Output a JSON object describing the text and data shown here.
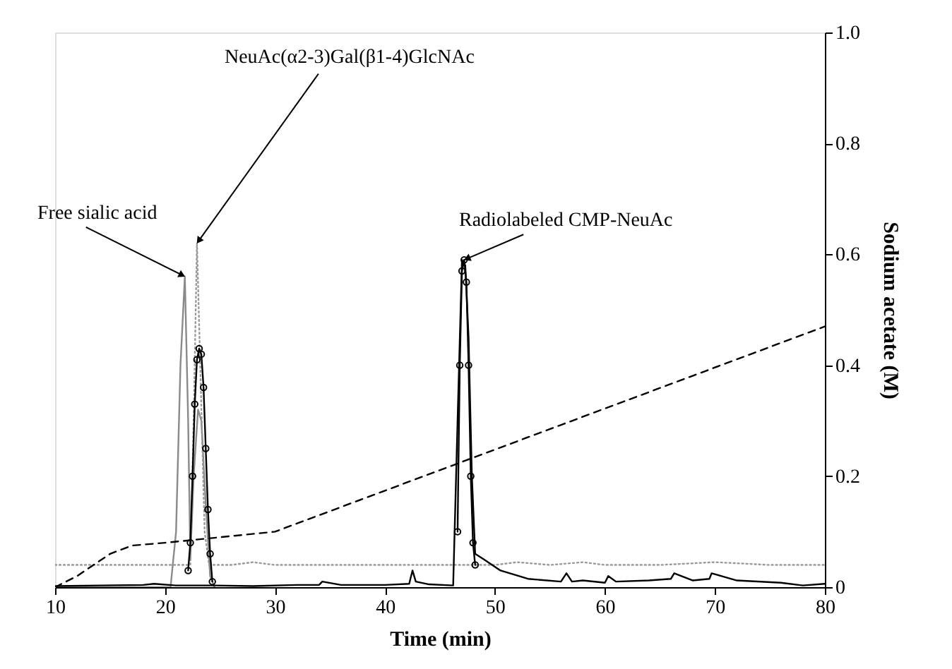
{
  "chart_data": {
    "type": "line",
    "xlabel": "Time (min)",
    "ylabel": "Sodium acetate (M)",
    "xlim": [
      10,
      80
    ],
    "xticks": [
      10,
      20,
      30,
      40,
      50,
      60,
      70,
      80
    ],
    "ylim": [
      0,
      1
    ],
    "yticks": [
      0,
      0.2,
      0.4,
      0.6,
      0.8,
      {
        "value": 1,
        "label": "1.0"
      }
    ],
    "grid": false,
    "annotations": [
      {
        "text": "Free sialic acid",
        "x": 21.8,
        "y": 0.56
      },
      {
        "text": "NeuAc(α2-3)Gal(β1-4)GlcNAc",
        "x": 22.9,
        "y": 0.62
      },
      {
        "text": "Radiolabeled CMP-NeuAc",
        "x": 47.2,
        "y": 0.59
      }
    ],
    "series": [
      {
        "color": "#8a8a8a",
        "line_style": "solid",
        "marker": "none",
        "x": [
          10,
          20.5,
          21.0,
          21.4,
          21.8,
          22.1,
          22.3,
          22.6,
          23.0,
          23.3,
          23.7,
          24.1,
          24.5
        ],
        "values": [
          0,
          0,
          0.1,
          0.4,
          0.56,
          0.3,
          0.05,
          0.2,
          0.32,
          0.3,
          0.15,
          0.02,
          0
        ]
      },
      {
        "color": "#999999",
        "line_style": "dotted",
        "marker": "none",
        "x": [
          10,
          15,
          20,
          21.5,
          22.3,
          22.6,
          22.9,
          23.2,
          23.6,
          24.0,
          26,
          28,
          30,
          35,
          40,
          45,
          46.5,
          50,
          52,
          55,
          58,
          60,
          65,
          70,
          75,
          80
        ],
        "values": [
          0.04,
          0.04,
          0.04,
          0.04,
          0.04,
          0.3,
          0.62,
          0.4,
          0.1,
          0.04,
          0.04,
          0.045,
          0.04,
          0.04,
          0.04,
          0.04,
          0.04,
          0.04,
          0.045,
          0.04,
          0.045,
          0.04,
          0.04,
          0.045,
          0.04,
          0.04
        ]
      },
      {
        "color": "#000000",
        "line_style": "solid",
        "marker": "none",
        "x": [
          10,
          14,
          18,
          19,
          21,
          24.5,
          28,
          32,
          34,
          34.3,
          36,
          40,
          42.2,
          42.5,
          42.8,
          44,
          46.2,
          46.6,
          47.0,
          47.3,
          47.6,
          47.9,
          48.2,
          49,
          50.5,
          53,
          56,
          56.5,
          57,
          58,
          60,
          60.3,
          61,
          64,
          66,
          66.3,
          68,
          69.5,
          69.7,
          72,
          76,
          78,
          80
        ],
        "values": [
          0.002,
          0.003,
          0.004,
          0.006,
          0.003,
          0.003,
          0.002,
          0.004,
          0.004,
          0.01,
          0.004,
          0.004,
          0.006,
          0.03,
          0.01,
          0.005,
          0.003,
          0.3,
          0.59,
          0.58,
          0.45,
          0.2,
          0.06,
          0.05,
          0.03,
          0.015,
          0.01,
          0.025,
          0.01,
          0.012,
          0.008,
          0.02,
          0.01,
          0.012,
          0.015,
          0.025,
          0.012,
          0.015,
          0.025,
          0.012,
          0.008,
          0.003,
          0.006
        ]
      },
      {
        "color": "#000000",
        "line_style": "solid",
        "marker": "circle",
        "x": [
          22.1,
          22.3,
          22.5,
          22.7,
          22.9,
          23.1,
          23.3,
          23.5,
          23.7,
          23.9,
          24.1,
          24.3,
          35,
          46.6,
          46.8,
          47.0,
          47.2,
          47.4,
          47.6,
          47.8,
          48.0,
          48.2
        ],
        "values": [
          0.03,
          0.08,
          0.2,
          0.33,
          0.41,
          0.43,
          0.42,
          0.36,
          0.25,
          0.14,
          0.06,
          0.01,
          null,
          0.1,
          0.4,
          0.57,
          0.59,
          0.55,
          0.4,
          0.2,
          0.08,
          0.04
        ]
      },
      {
        "color": "#000000",
        "line_style": "dashed",
        "marker": "none",
        "x": [
          10,
          12,
          15,
          17,
          20,
          25,
          30,
          80
        ],
        "values": [
          0,
          0.02,
          0.06,
          0.075,
          0.08,
          0.09,
          0.1,
          0.47
        ]
      }
    ]
  }
}
